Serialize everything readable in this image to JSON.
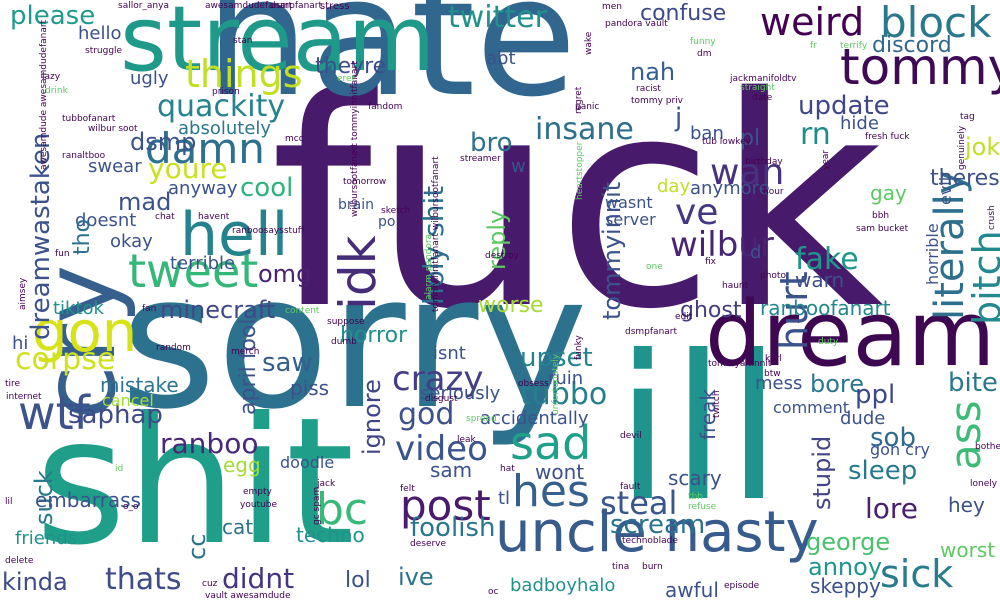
{
  "palette": [
    "#440154",
    "#3b528b",
    "#21908d",
    "#5dc963",
    "#fde725"
  ],
  "words": [
    {
      "text": "fuck",
      "color": "#481a6c"
    },
    {
      "text": "sorry",
      "color": "#2c728e"
    },
    {
      "text": "hate",
      "color": "#31668e"
    },
    {
      "text": "shit",
      "color": "#1f9e89"
    },
    {
      "text": "ill",
      "color": "#1f948c"
    },
    {
      "text": "stream",
      "color": "#1f9a8a"
    },
    {
      "text": "dream",
      "color": "#3e0751"
    },
    {
      "text": "cry",
      "color": "#35608d"
    },
    {
      "text": "hell",
      "color": "#25838e"
    },
    {
      "text": "uncle nasty",
      "color": "#375b8d"
    },
    {
      "text": "gon",
      "color": "#d8e219"
    },
    {
      "text": "tommy",
      "color": "#3f0a55"
    },
    {
      "text": "weird",
      "color": "#440154"
    },
    {
      "text": "block",
      "color": "#2a788e"
    },
    {
      "text": "things",
      "color": "#c2df23"
    },
    {
      "text": "damn",
      "color": "#2d708e"
    },
    {
      "text": "tweet",
      "color": "#35b779"
    },
    {
      "text": "wtf",
      "color": "#3b528b"
    },
    {
      "text": "quackity",
      "color": "#26828e"
    },
    {
      "text": "corpse",
      "color": "#cde11d"
    },
    {
      "text": "idk",
      "color": "#472c7a"
    },
    {
      "text": "literally",
      "color": "#2d708e"
    },
    {
      "text": "bitch",
      "color": "#23898e"
    },
    {
      "text": "sad",
      "color": "#1fa088"
    },
    {
      "text": "hes",
      "color": "#355f8d"
    },
    {
      "text": "post",
      "color": "#481b6d"
    },
    {
      "text": "bc",
      "color": "#38b977"
    },
    {
      "text": "sick",
      "color": "#287c8e"
    },
    {
      "text": "ass",
      "color": "#3bbb75"
    },
    {
      "text": "hurt",
      "color": "#3b528b"
    },
    {
      "text": "wilbur",
      "color": "#482475"
    },
    {
      "text": "ve",
      "color": "#453882"
    },
    {
      "text": "wan",
      "color": "#46327e"
    },
    {
      "text": "crazy",
      "color": "#433e85"
    },
    {
      "text": "video",
      "color": "#3a548c"
    },
    {
      "text": "god",
      "color": "#3b528b"
    },
    {
      "text": "tubbo",
      "color": "#277f8e"
    },
    {
      "text": "steal",
      "color": "#39568c"
    },
    {
      "text": "fake",
      "color": "#1f988b"
    },
    {
      "text": "rn",
      "color": "#238a8d"
    },
    {
      "text": "insane",
      "color": "#2e6f8e"
    },
    {
      "text": "twitter",
      "color": "#21918c"
    },
    {
      "text": "update",
      "color": "#3f4788"
    },
    {
      "text": "dreamwastaken",
      "color": "#3b528b"
    },
    {
      "text": "holy shit",
      "color": "#2e6e8e"
    },
    {
      "text": "tommyinnit",
      "color": "#3a538b"
    },
    {
      "text": "reply",
      "color": "#5ec962"
    },
    {
      "text": "thats",
      "color": "#3e4c8a"
    },
    {
      "text": "didnt",
      "color": "#463480"
    },
    {
      "text": "ranboo",
      "color": "#482878"
    },
    {
      "text": "saphap",
      "color": "#3e4a89"
    },
    {
      "text": "upset",
      "color": "#25838e"
    },
    {
      "text": "youre",
      "color": "#cae11f"
    },
    {
      "text": "cool",
      "color": "#2eb37c"
    },
    {
      "text": "foolish",
      "color": "#2a768e"
    },
    {
      "text": "scream",
      "color": "#2c718e"
    },
    {
      "text": "george",
      "color": "#4ac16d"
    },
    {
      "text": "lore",
      "color": "#482173"
    },
    {
      "text": "sleep",
      "color": "#2a788e"
    },
    {
      "text": "please",
      "color": "#1e9c89"
    },
    {
      "text": "confuse",
      "color": "#3e4989"
    },
    {
      "text": "discord",
      "color": "#31678e"
    },
    {
      "text": "nah",
      "color": "#35608d"
    },
    {
      "text": "minecraft",
      "color": "#3f4889"
    },
    {
      "text": "mad",
      "color": "#3b528b"
    },
    {
      "text": "ignore",
      "color": "#404588"
    },
    {
      "text": "bore",
      "color": "#2a788e"
    },
    {
      "text": "bite",
      "color": "#2a788e"
    },
    {
      "text": "ppl",
      "color": "#3e4989"
    },
    {
      "text": "stupid",
      "color": "#414487"
    },
    {
      "text": "sob",
      "color": "#306a8e"
    },
    {
      "text": "kinda",
      "color": "#3e4a89"
    },
    {
      "text": "lol",
      "color": "#3b528b"
    },
    {
      "text": "ive",
      "color": "#2c738e"
    },
    {
      "text": "annoy",
      "color": "#1f958b"
    },
    {
      "text": "joke",
      "color": "#c0df25"
    },
    {
      "text": "theres",
      "color": "#3b528b"
    },
    {
      "text": "dsmp",
      "color": "#3b528b"
    },
    {
      "text": "omg",
      "color": "#482173"
    },
    {
      "text": "saw",
      "color": "#355e8d"
    },
    {
      "text": "horror",
      "color": "#21908d"
    },
    {
      "text": "worse",
      "color": "#a5db36"
    },
    {
      "text": "suck",
      "color": "#29798e"
    },
    {
      "text": "cc",
      "color": "#2b748e"
    },
    {
      "text": "april fool",
      "color": "#3b528b"
    },
    {
      "text": "mistake",
      "color": "#2b758e"
    },
    {
      "text": "ranboofanart",
      "color": "#23888e"
    },
    {
      "text": "ghost",
      "color": "#433d84"
    },
    {
      "text": "warn",
      "color": "#3d4e8a"
    },
    {
      "text": "bro",
      "color": "#2c728e"
    },
    {
      "text": "theyre",
      "color": "#3d4d8a"
    },
    {
      "text": "hello",
      "color": "#3b528b"
    },
    {
      "text": "ugly",
      "color": "#3b528b"
    },
    {
      "text": "absolutely",
      "color": "#2a778e"
    },
    {
      "text": "swear",
      "color": "#3b528b"
    },
    {
      "text": "anyway",
      "color": "#3b528b"
    },
    {
      "text": "terrible",
      "color": "#3b528b"
    },
    {
      "text": "okay",
      "color": "#3b528b"
    },
    {
      "text": "doesnt",
      "color": "#3b528b"
    },
    {
      "text": "tho",
      "color": "#2c728e"
    },
    {
      "text": "day",
      "color": "#c0df25"
    },
    {
      "text": "anymore",
      "color": "#3b528b"
    },
    {
      "text": "gay",
      "color": "#5ec962"
    },
    {
      "text": "ban",
      "color": "#3b528b"
    },
    {
      "text": "pl",
      "color": "#3b528b"
    },
    {
      "text": "hide",
      "color": "#3b528b"
    },
    {
      "text": "horrible",
      "color": "#3b528b"
    },
    {
      "text": "evil",
      "color": "#3b528b"
    },
    {
      "text": "tiktok",
      "color": "#21918c"
    },
    {
      "text": "hi",
      "color": "#3b528b"
    },
    {
      "text": "isnt",
      "color": "#3b528b"
    },
    {
      "text": "seriously",
      "color": "#3b528b"
    },
    {
      "text": "accidentally",
      "color": "#3b528b"
    },
    {
      "text": "ruin",
      "color": "#3b528b"
    },
    {
      "text": "mess",
      "color": "#3b528b"
    },
    {
      "text": "comment",
      "color": "#3b528b"
    },
    {
      "text": "dude",
      "color": "#3b528b"
    },
    {
      "text": "gon cry",
      "color": "#3b528b"
    },
    {
      "text": "freak",
      "color": "#3b528b"
    },
    {
      "text": "scary",
      "color": "#3b528b"
    },
    {
      "text": "wont",
      "color": "#3b528b"
    },
    {
      "text": "sam",
      "color": "#3b528b"
    },
    {
      "text": "egg",
      "color": "#a5db36"
    },
    {
      "text": "doodle",
      "color": "#3b528b"
    },
    {
      "text": "piss",
      "color": "#3b528b"
    },
    {
      "text": "cancel",
      "color": "#a5db36"
    },
    {
      "text": "embarrass",
      "color": "#3b528b"
    },
    {
      "text": "cat",
      "color": "#2c728e"
    },
    {
      "text": "techno",
      "color": "#21918c"
    },
    {
      "text": "friends",
      "color": "#21918c"
    },
    {
      "text": "badboyhalo",
      "color": "#21918c"
    },
    {
      "text": "awful",
      "color": "#3b528b"
    },
    {
      "text": "skeppy",
      "color": "#3b528b"
    },
    {
      "text": "worst",
      "color": "#5ec962"
    },
    {
      "text": "hey",
      "color": "#3b528b"
    },
    {
      "text": "abt",
      "color": "#3b528b"
    },
    {
      "text": "wasnt",
      "color": "#3b528b"
    },
    {
      "text": "server",
      "color": "#3b528b"
    },
    {
      "text": "w",
      "color": "#3b528b"
    },
    {
      "text": "j",
      "color": "#3b528b"
    },
    {
      "text": "d",
      "color": "#3b528b"
    },
    {
      "text": "tl",
      "color": "#3b528b"
    },
    {
      "text": "brain",
      "color": "#3b528b"
    },
    {
      "text": "po",
      "color": "#3b528b"
    },
    {
      "text": "stress",
      "color": "#440154"
    },
    {
      "text": "sallor_anya",
      "color": "#440154"
    },
    {
      "text": "awesamdudefanart",
      "color": "#440154"
    },
    {
      "text": "dsmpfanart",
      "color": "#440154"
    },
    {
      "text": "men",
      "color": "#440154"
    },
    {
      "text": "pandora vault",
      "color": "#440154"
    },
    {
      "text": "jackmanifoldtv",
      "color": "#440154"
    },
    {
      "text": "tubbofanart",
      "color": "#440154"
    },
    {
      "text": "wilbur soot",
      "color": "#440154"
    },
    {
      "text": "wilbursootfanart tommyinnitfanart",
      "color": "#440154"
    },
    {
      "text": "ranaltboo",
      "color": "#440154"
    },
    {
      "text": "fresh fuck",
      "color": "#440154"
    },
    {
      "text": "tommyinnitfanart wilbursootfanart",
      "color": "#440154"
    },
    {
      "text": "ranboosaysstuff",
      "color": "#440154"
    },
    {
      "text": "tommyaltinnit",
      "color": "#440154"
    },
    {
      "text": "sam bucket",
      "color": "#440154"
    },
    {
      "text": "genuinely",
      "color": "#440154"
    },
    {
      "text": "crush",
      "color": "#440154"
    },
    {
      "text": "birthday",
      "color": "#440154"
    },
    {
      "text": "tommy priv",
      "color": "#440154"
    },
    {
      "text": "photo",
      "color": "#440154"
    },
    {
      "text": "haunt",
      "color": "#440154"
    },
    {
      "text": "dsmpfanart",
      "color": "#440154"
    },
    {
      "text": "struggle",
      "color": "#440154"
    },
    {
      "text": "drink",
      "color": "#5ec962"
    },
    {
      "text": "lazy",
      "color": "#440154"
    },
    {
      "text": "stan",
      "color": "#440154"
    },
    {
      "text": "prison",
      "color": "#440154"
    },
    {
      "text": "fandom",
      "color": "#440154"
    },
    {
      "text": "regret",
      "color": "#440154"
    },
    {
      "text": "panic",
      "color": "#440154"
    },
    {
      "text": "racist",
      "color": "#440154"
    },
    {
      "text": "straight",
      "color": "#5ec962"
    },
    {
      "text": "date",
      "color": "#440154"
    },
    {
      "text": "terrify",
      "color": "#5ec962"
    },
    {
      "text": "tag",
      "color": "#440154"
    },
    {
      "text": "funny",
      "color": "#5ec962"
    },
    {
      "text": "dm",
      "color": "#440154"
    },
    {
      "text": "fix",
      "color": "#440154"
    },
    {
      "text": "destroy",
      "color": "#440154"
    },
    {
      "text": "sketch",
      "color": "#440154"
    },
    {
      "text": "tomorrow",
      "color": "#440154"
    },
    {
      "text": "streamer",
      "color": "#440154"
    },
    {
      "text": "disgust",
      "color": "#440154"
    },
    {
      "text": "mcc",
      "color": "#440154"
    },
    {
      "text": "heartstopper",
      "color": "#5ec962"
    },
    {
      "text": "hour",
      "color": "#440154"
    },
    {
      "text": "year",
      "color": "#440154"
    },
    {
      "text": "bbh",
      "color": "#440154"
    },
    {
      "text": "chat",
      "color": "#440154"
    },
    {
      "text": "havent",
      "color": "#440154"
    },
    {
      "text": "jack",
      "color": "#440154"
    },
    {
      "text": "fun",
      "color": "#440154"
    },
    {
      "text": "aimsey",
      "color": "#440154"
    },
    {
      "text": "fan",
      "color": "#440154"
    },
    {
      "text": "merch",
      "color": "#440154"
    },
    {
      "text": "content",
      "color": "#5ec962"
    },
    {
      "text": "suppose",
      "color": "#440154"
    },
    {
      "text": "random",
      "color": "#440154"
    },
    {
      "text": "dumb",
      "color": "#440154"
    },
    {
      "text": "funky",
      "color": "#440154"
    },
    {
      "text": "edit",
      "color": "#440154"
    },
    {
      "text": "alarm pandora",
      "color": "#5ec962"
    },
    {
      "text": "one",
      "color": "#5ec962"
    },
    {
      "text": "karl",
      "color": "#440154"
    },
    {
      "text": "btw",
      "color": "#440154"
    },
    {
      "text": "tire",
      "color": "#440154"
    },
    {
      "text": "internet",
      "color": "#440154"
    },
    {
      "text": "obsess",
      "color": "#440154"
    },
    {
      "text": "spread",
      "color": "#5ec962"
    },
    {
      "text": "unfortunately",
      "color": "#5ec962"
    },
    {
      "text": "twitch",
      "color": "#440154"
    },
    {
      "text": "devil",
      "color": "#440154"
    },
    {
      "text": "leak",
      "color": "#440154"
    },
    {
      "text": "hat",
      "color": "#440154"
    },
    {
      "text": "felt",
      "color": "#440154"
    },
    {
      "text": "fault",
      "color": "#440154"
    },
    {
      "text": "bother",
      "color": "#440154"
    },
    {
      "text": "lonely",
      "color": "#440154"
    },
    {
      "text": "id",
      "color": "#5ec962"
    },
    {
      "text": "o_o",
      "color": "#440154"
    },
    {
      "text": "empty",
      "color": "#440154"
    },
    {
      "text": "youtube",
      "color": "#440154"
    },
    {
      "text": "gc spam",
      "color": "#440154"
    },
    {
      "text": "tbh",
      "color": "#5ec962"
    },
    {
      "text": "refuse",
      "color": "#5ec962"
    },
    {
      "text": "technoblade",
      "color": "#440154"
    },
    {
      "text": "burn",
      "color": "#440154"
    },
    {
      "text": "deserve",
      "color": "#440154"
    },
    {
      "text": "tina",
      "color": "#440154"
    },
    {
      "text": "delete",
      "color": "#440154"
    },
    {
      "text": "lil",
      "color": "#440154"
    },
    {
      "text": "cuz",
      "color": "#440154"
    },
    {
      "text": "vault awesamdude",
      "color": "#440154"
    },
    {
      "text": "oc",
      "color": "#440154"
    },
    {
      "text": "episode",
      "color": "#440154"
    },
    {
      "text": "wake",
      "color": "#440154"
    },
    {
      "text": "tub lowkey",
      "color": "#440154"
    },
    {
      "text": "fr",
      "color": "#5ec962"
    },
    {
      "text": "awesamdude awesamdudefanart",
      "color": "#440154"
    },
    {
      "text": "eret",
      "color": "#5ec962"
    },
    {
      "text": "duty",
      "color": "#5ec962"
    }
  ]
}
